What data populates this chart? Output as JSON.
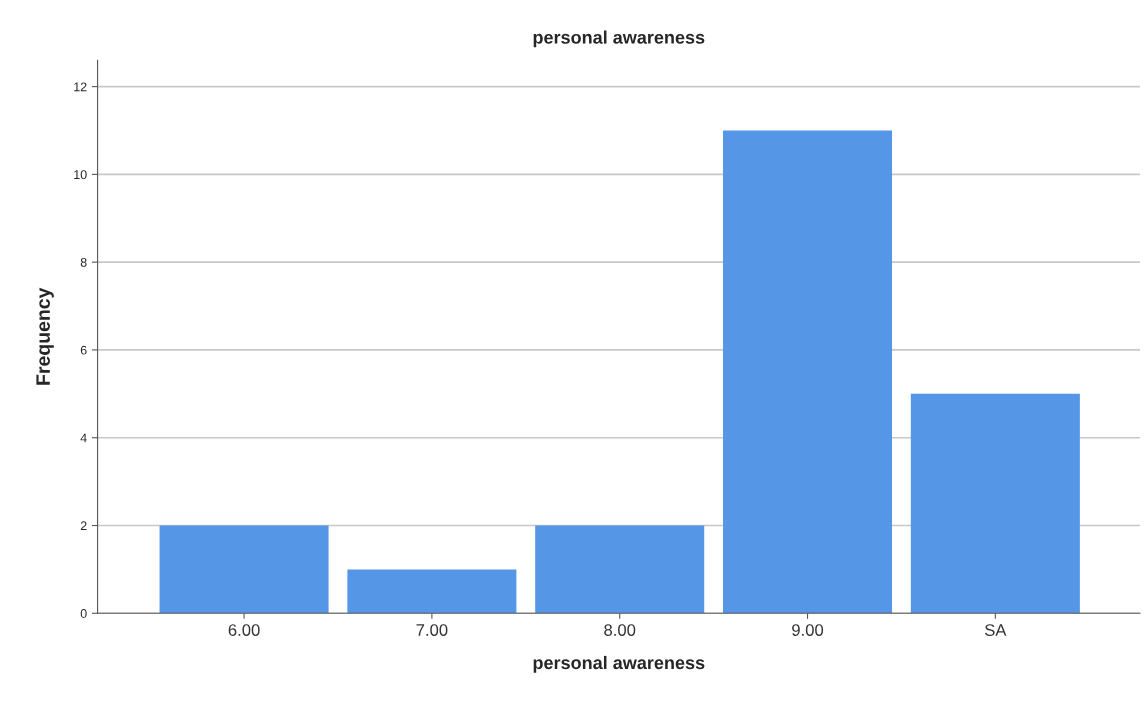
{
  "chart_data": {
    "type": "bar",
    "title": "personal awareness",
    "xlabel": "personal awareness",
    "ylabel": "Frequency",
    "categories": [
      "6.00",
      "7.00",
      "8.00",
      "9.00",
      "SA"
    ],
    "values": [
      2,
      1,
      2,
      11,
      5
    ],
    "color": "#5596e6",
    "ylim": [
      0,
      12.6
    ],
    "yticks": [
      0,
      2,
      4,
      6,
      8,
      10,
      12
    ],
    "grid": "y"
  }
}
